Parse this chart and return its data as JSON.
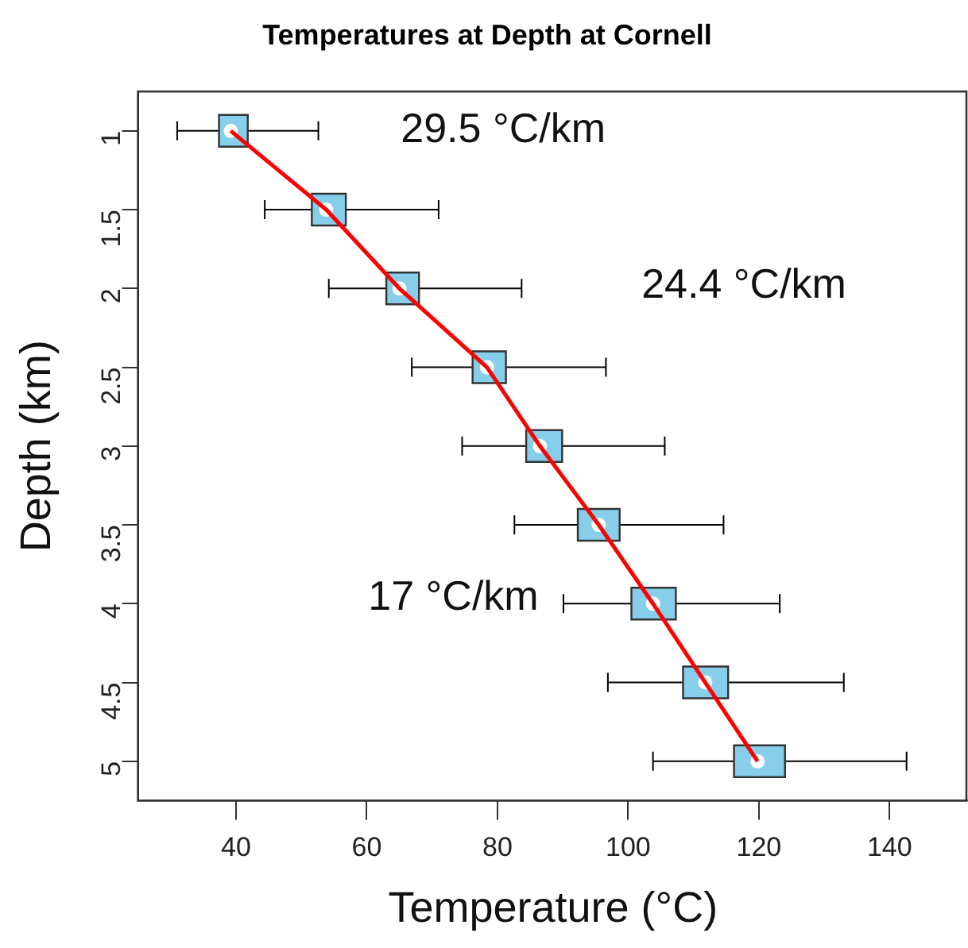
{
  "chart_data": {
    "type": "box",
    "orientation": "horizontal",
    "title": "Temperatures at Depth at Cornell",
    "xlabel": "Temperature (°C)",
    "ylabel": "Depth (km)",
    "categories": [
      "1",
      "1.5",
      "2",
      "2.5",
      "3",
      "3.5",
      "4",
      "4.5",
      "5"
    ],
    "xlim": [
      25,
      152
    ],
    "xticks": [
      40,
      60,
      80,
      100,
      120,
      140
    ],
    "grid": false,
    "legend": false,
    "series": [
      {
        "type": "box",
        "color": "#87ceeb",
        "boxes": [
          {
            "low": 31,
            "q1": 37.4,
            "median": 39.2,
            "q3": 41.8,
            "high": 52.6
          },
          {
            "low": 44.4,
            "q1": 51.6,
            "median": 53.8,
            "q3": 56.8,
            "high": 71
          },
          {
            "low": 54.2,
            "q1": 63,
            "median": 65,
            "q3": 68,
            "high": 83.7
          },
          {
            "low": 66.9,
            "q1": 76.2,
            "median": 78.4,
            "q3": 81.3,
            "high": 96.6
          },
          {
            "low": 74.6,
            "q1": 84.4,
            "median": 86.5,
            "q3": 89.9,
            "high": 105.6
          },
          {
            "low": 82.6,
            "q1": 92.3,
            "median": 95.5,
            "q3": 98.7,
            "high": 114.6
          },
          {
            "low": 90.1,
            "q1": 100.5,
            "median": 103.8,
            "q3": 107.3,
            "high": 123.2
          },
          {
            "low": 96.9,
            "q1": 108.4,
            "median": 111.8,
            "q3": 115.3,
            "high": 133
          },
          {
            "low": 103.8,
            "q1": 116.2,
            "median": 119.8,
            "q3": 124,
            "high": 142.6
          }
        ]
      },
      {
        "type": "line",
        "color": "#ff0000",
        "values": [
          39.2,
          53.8,
          65,
          78.4,
          86.5,
          95.5,
          103.8,
          111.8,
          119.8
        ]
      }
    ],
    "annotations": [
      "29.5 °C/km",
      "24.4 °C/km",
      "17 °C/km"
    ]
  }
}
